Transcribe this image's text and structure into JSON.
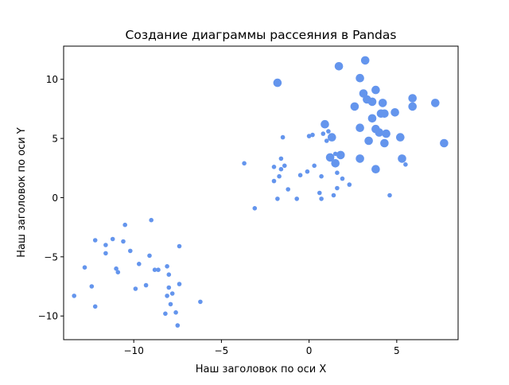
{
  "chart_data": {
    "type": "scatter",
    "title": "Создание диаграммы рассеяния в Pandas",
    "xlabel": "Наш заголовок по оси X",
    "ylabel": "Наш заголовок по оси Y",
    "xlim": [
      -14.0,
      8.5
    ],
    "ylim": [
      -12.0,
      12.8
    ],
    "xticks": [
      -10,
      -5,
      0,
      5
    ],
    "xtick_labels": [
      "−10",
      "−5",
      "0",
      "5"
    ],
    "yticks": [
      -10,
      -5,
      0,
      5,
      10
    ],
    "ytick_labels": [
      "−10",
      "−5",
      "0",
      "5",
      "10"
    ],
    "grid": false,
    "point_color": "#6495ED",
    "series": [
      {
        "marker_size": "small",
        "points": [
          [
            -13.4,
            -8.3
          ],
          [
            -12.8,
            -5.9
          ],
          [
            -12.4,
            -7.5
          ],
          [
            -12.2,
            -9.2
          ],
          [
            -12.2,
            -3.6
          ],
          [
            -11.6,
            -4.0
          ],
          [
            -11.6,
            -4.7
          ],
          [
            -11.2,
            -3.5
          ],
          [
            -11.0,
            -6.0
          ],
          [
            -10.9,
            -6.3
          ],
          [
            -10.6,
            -3.7
          ],
          [
            -10.5,
            -2.3
          ],
          [
            -10.2,
            -4.5
          ],
          [
            -9.9,
            -7.7
          ],
          [
            -9.7,
            -5.6
          ],
          [
            -9.3,
            -7.4
          ],
          [
            -9.1,
            -4.9
          ],
          [
            -9.0,
            -1.9
          ],
          [
            -8.8,
            -6.1
          ],
          [
            -8.6,
            -6.1
          ],
          [
            -8.2,
            -9.8
          ],
          [
            -8.1,
            -8.3
          ],
          [
            -8.1,
            -5.8
          ],
          [
            -8.0,
            -6.5
          ],
          [
            -8.0,
            -7.6
          ],
          [
            -7.9,
            -9.0
          ],
          [
            -7.8,
            -8.1
          ],
          [
            -7.6,
            -9.7
          ],
          [
            -7.5,
            -10.8
          ],
          [
            -7.4,
            -4.1
          ],
          [
            -7.4,
            -7.3
          ],
          [
            -6.2,
            -8.8
          ],
          [
            -3.7,
            2.9
          ],
          [
            -3.1,
            -0.9
          ],
          [
            -2.0,
            2.6
          ],
          [
            -2.0,
            1.4
          ],
          [
            -1.8,
            -0.1
          ],
          [
            -1.7,
            1.8
          ],
          [
            -1.6,
            3.3
          ],
          [
            -1.6,
            2.4
          ],
          [
            -1.5,
            5.1
          ],
          [
            -1.4,
            2.7
          ],
          [
            -1.2,
            0.7
          ],
          [
            -0.7,
            -0.1
          ],
          [
            -0.5,
            1.9
          ],
          [
            -0.1,
            2.2
          ],
          [
            0.0,
            5.2
          ],
          [
            0.2,
            5.3
          ],
          [
            0.3,
            2.7
          ],
          [
            0.6,
            0.4
          ],
          [
            0.7,
            1.8
          ],
          [
            0.7,
            -0.1
          ],
          [
            0.8,
            5.4
          ],
          [
            1.0,
            4.8
          ],
          [
            1.1,
            5.6
          ],
          [
            1.4,
            0.2
          ],
          [
            1.5,
            3.7
          ],
          [
            1.6,
            2.1
          ],
          [
            1.6,
            0.8
          ],
          [
            1.9,
            1.6
          ],
          [
            2.3,
            1.1
          ],
          [
            4.6,
            0.2
          ],
          [
            5.5,
            2.8
          ]
        ]
      },
      {
        "marker_size": "large",
        "points": [
          [
            -1.8,
            9.7
          ],
          [
            0.9,
            6.2
          ],
          [
            1.2,
            3.4
          ],
          [
            1.3,
            5.1
          ],
          [
            1.5,
            2.9
          ],
          [
            1.7,
            11.1
          ],
          [
            1.8,
            3.6
          ],
          [
            2.6,
            7.7
          ],
          [
            2.9,
            10.1
          ],
          [
            2.9,
            5.9
          ],
          [
            2.9,
            3.3
          ],
          [
            3.1,
            8.8
          ],
          [
            3.2,
            11.6
          ],
          [
            3.3,
            8.3
          ],
          [
            3.4,
            4.8
          ],
          [
            3.6,
            8.1
          ],
          [
            3.6,
            6.7
          ],
          [
            3.8,
            2.4
          ],
          [
            3.8,
            9.1
          ],
          [
            3.8,
            5.8
          ],
          [
            4.0,
            5.5
          ],
          [
            4.1,
            7.1
          ],
          [
            4.2,
            8.0
          ],
          [
            4.3,
            4.6
          ],
          [
            4.3,
            7.1
          ],
          [
            4.4,
            5.4
          ],
          [
            4.9,
            7.2
          ],
          [
            5.2,
            5.1
          ],
          [
            5.3,
            3.3
          ],
          [
            5.9,
            8.4
          ],
          [
            5.9,
            7.7
          ],
          [
            7.2,
            8.0
          ],
          [
            7.7,
            4.6
          ]
        ]
      }
    ]
  }
}
